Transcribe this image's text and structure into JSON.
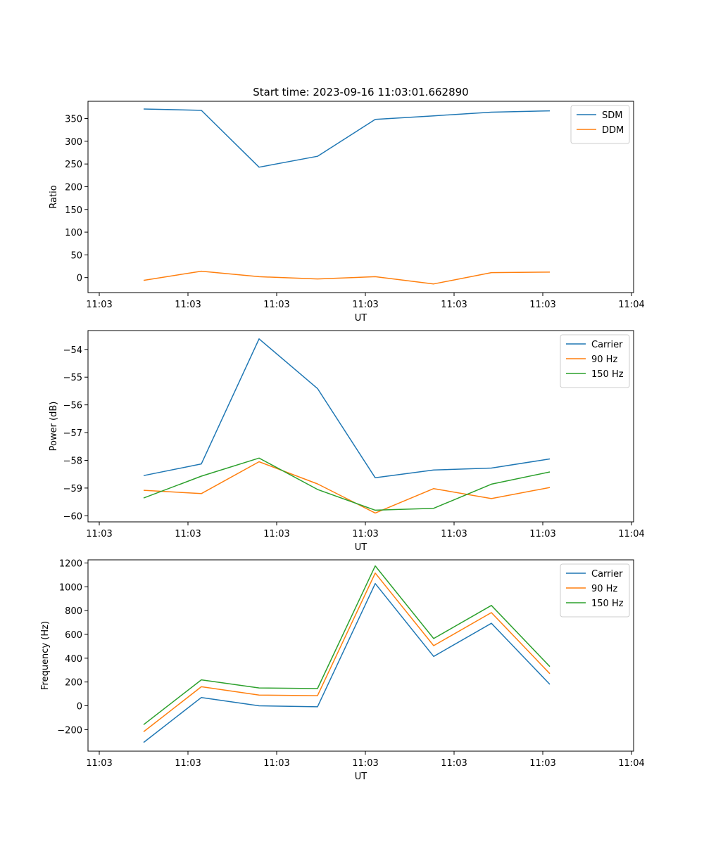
{
  "figure_title": "Start time: 2023-09-16 11:03:01.662890",
  "colors": {
    "c0": "#1f77b4",
    "c1": "#ff7f0e",
    "c2": "#2ca02c"
  },
  "chart_data": [
    {
      "type": "line",
      "title": "Start time: 2023-09-16 11:03:01.662890",
      "xlabel": "UT",
      "ylabel": "Ratio",
      "x_tick_labels": [
        "11:03",
        "11:03",
        "11:03",
        "11:03",
        "11:03",
        "11:03",
        "11:04"
      ],
      "y_ticks": [
        0,
        50,
        100,
        150,
        200,
        250,
        300,
        350
      ],
      "y_tick_labels": [
        "0",
        "50",
        "100",
        "150",
        "200",
        "250",
        "300",
        "350"
      ],
      "ylim": [
        -33,
        388
      ],
      "legend_position": "top-right",
      "series": [
        {
          "name": "SDM",
          "values": [
            371,
            368,
            243,
            267,
            348,
            356,
            364,
            367
          ]
        },
        {
          "name": "DDM",
          "values": [
            -6,
            14,
            2,
            -3,
            2,
            -14,
            11,
            12
          ]
        }
      ]
    },
    {
      "type": "line",
      "title": "",
      "xlabel": "UT",
      "ylabel": "Power (dB)",
      "x_tick_labels": [
        "11:03",
        "11:03",
        "11:03",
        "11:03",
        "11:03",
        "11:03",
        "11:04"
      ],
      "y_ticks": [
        -60,
        -59,
        -58,
        -57,
        -56,
        -55,
        -54
      ],
      "y_tick_labels": [
        "−60",
        "−59",
        "−58",
        "−57",
        "−56",
        "−55",
        "−54"
      ],
      "ylim": [
        -60.22,
        -53.32
      ],
      "legend_position": "top-right",
      "series": [
        {
          "name": "Carrier",
          "values": [
            -58.55,
            -58.13,
            -53.62,
            -55.41,
            -58.63,
            -58.35,
            -58.28,
            -57.95
          ]
        },
        {
          "name": "90 Hz",
          "values": [
            -59.08,
            -59.2,
            -58.05,
            -58.85,
            -59.9,
            -59.02,
            -59.38,
            -58.98
          ]
        },
        {
          "name": "150 Hz",
          "values": [
            -59.36,
            -58.57,
            -57.92,
            -59.05,
            -59.8,
            -59.73,
            -58.86,
            -58.42
          ]
        }
      ]
    },
    {
      "type": "line",
      "title": "",
      "xlabel": "UT",
      "ylabel": "Frequency (Hz)",
      "x_tick_labels": [
        "11:03",
        "11:03",
        "11:03",
        "11:03",
        "11:03",
        "11:03",
        "11:04"
      ],
      "y_ticks": [
        -200,
        0,
        200,
        400,
        600,
        800,
        1000,
        1200
      ],
      "y_tick_labels": [
        "−200",
        "0",
        "200",
        "400",
        "600",
        "800",
        "1000",
        "1200"
      ],
      "ylim": [
        -381,
        1226
      ],
      "legend_position": "top-right",
      "series": [
        {
          "name": "Carrier",
          "values": [
            -308,
            70,
            0,
            -8,
            1027,
            415,
            693,
            180
          ]
        },
        {
          "name": "90 Hz",
          "values": [
            -218,
            160,
            90,
            85,
            1115,
            505,
            783,
            270
          ]
        },
        {
          "name": "150 Hz",
          "values": [
            -158,
            218,
            150,
            145,
            1175,
            565,
            843,
            330
          ]
        }
      ]
    }
  ]
}
